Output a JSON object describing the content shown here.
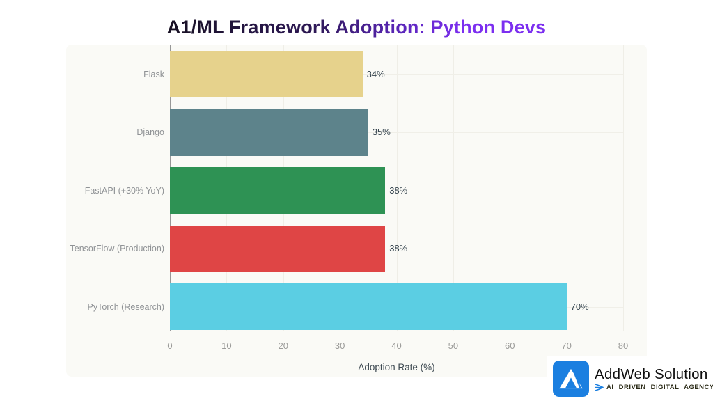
{
  "title": {
    "text": "A1/ML Framework Adoption: Python Devs",
    "gradient_start_color": "#171022",
    "gradient_end_color": "#7c2ff0"
  },
  "chart_data": {
    "type": "bar",
    "orientation": "horizontal",
    "categories": [
      "Flask",
      "Django",
      "FastAPI (+30% YoY)",
      "TensorFlow (Production)",
      "PyTorch (Research)"
    ],
    "values": [
      34,
      35,
      38,
      38,
      70
    ],
    "value_labels": [
      "34%",
      "35%",
      "38%",
      "38%",
      "70%"
    ],
    "bar_colors": [
      "#e6d28c",
      "#5d838b",
      "#2e9254",
      "#df4545",
      "#5bcee3"
    ],
    "xlabel": "Adoption Rate (%)",
    "xlim": [
      0,
      80
    ],
    "xticks": [
      0,
      10,
      20,
      30,
      40,
      50,
      60,
      70,
      80
    ],
    "xtick_labels": [
      "0",
      "10",
      "20",
      "30",
      "40",
      "50",
      "60",
      "70",
      "80"
    ],
    "grid": true,
    "legend": "none",
    "panel_bg": "#fafaf6",
    "axis_line_color": "#979797"
  },
  "branding": {
    "name": "AddWeb Solution",
    "tagline": "AI DRIVEN DIGITAL AGENCY",
    "logo_color": "#1b7fe0"
  }
}
